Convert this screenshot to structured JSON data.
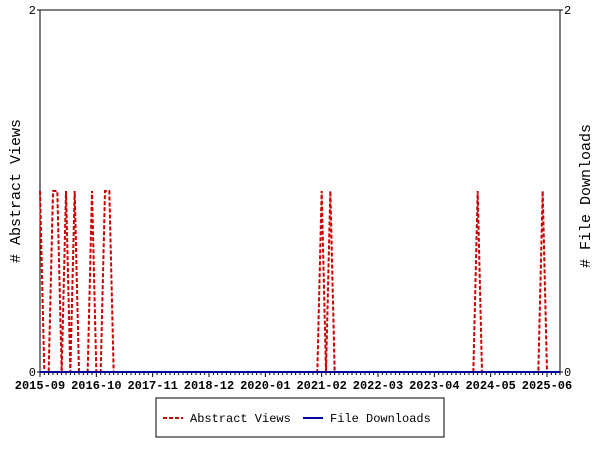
{
  "chart_data": {
    "type": "line",
    "y_label": "# Abstract Views",
    "y2_label": "# File Downloads",
    "categories": [
      "2015-09",
      null,
      null,
      null,
      null,
      null,
      null,
      null,
      null,
      null,
      null,
      null,
      null,
      "2016-10",
      null,
      null,
      null,
      null,
      null,
      null,
      null,
      null,
      null,
      null,
      null,
      null,
      "2017-11",
      null,
      null,
      null,
      null,
      null,
      null,
      null,
      null,
      null,
      null,
      null,
      null,
      "2018-12",
      null,
      null,
      null,
      null,
      null,
      null,
      null,
      null,
      null,
      null,
      null,
      null,
      "2020-01",
      null,
      null,
      null,
      null,
      null,
      null,
      null,
      null,
      null,
      null,
      null,
      null,
      "2021-02",
      null,
      null,
      null,
      null,
      null,
      null,
      null,
      null,
      null,
      null,
      null,
      null,
      "2022-03",
      null,
      null,
      null,
      null,
      null,
      null,
      null,
      null,
      null,
      null,
      null,
      null,
      "2023-04",
      null,
      null,
      null,
      null,
      null,
      null,
      null,
      null,
      null,
      null,
      null,
      null,
      "2024-05",
      null,
      null,
      null,
      null,
      null,
      null,
      null,
      null,
      null,
      null,
      null,
      null,
      "2025-06",
      null,
      null,
      null
    ],
    "series": [
      {
        "name": "Abstract Views",
        "color": "#cc0000",
        "dash": true,
        "values": [
          1,
          0,
          0,
          1,
          1,
          0,
          1,
          0,
          1,
          0,
          0,
          0,
          1,
          0,
          0,
          1,
          1,
          0,
          0,
          0,
          0,
          0,
          0,
          0,
          0,
          0,
          0,
          0,
          0,
          0,
          0,
          0,
          0,
          0,
          0,
          0,
          0,
          0,
          0,
          0,
          0,
          0,
          0,
          0,
          0,
          0,
          0,
          0,
          0,
          0,
          0,
          0,
          0,
          0,
          0,
          0,
          0,
          0,
          0,
          0,
          0,
          0,
          0,
          0,
          0,
          1,
          0,
          1,
          0,
          0,
          0,
          0,
          0,
          0,
          0,
          0,
          0,
          0,
          0,
          0,
          0,
          0,
          0,
          0,
          0,
          0,
          0,
          0,
          0,
          0,
          0,
          0,
          0,
          0,
          0,
          0,
          0,
          0,
          0,
          0,
          0,
          1,
          0,
          0,
          0,
          0,
          0,
          0,
          0,
          0,
          0,
          0,
          0,
          0,
          0,
          0,
          1,
          0,
          0,
          0,
          0
        ]
      },
      {
        "name": "File Downloads",
        "color": "#000099",
        "dash": false,
        "axis": "y2",
        "values": [
          0,
          0,
          0,
          0,
          0,
          0,
          0,
          0,
          0,
          0,
          0,
          0,
          0,
          0,
          0,
          0,
          0,
          0,
          0,
          0,
          0,
          0,
          0,
          0,
          0,
          0,
          0,
          0,
          0,
          0,
          0,
          0,
          0,
          0,
          0,
          0,
          0,
          0,
          0,
          0,
          0,
          0,
          0,
          0,
          0,
          0,
          0,
          0,
          0,
          0,
          0,
          0,
          0,
          0,
          0,
          0,
          0,
          0,
          0,
          0,
          0,
          0,
          0,
          0,
          0,
          0,
          0,
          0,
          0,
          0,
          0,
          0,
          0,
          0,
          0,
          0,
          0,
          0,
          0,
          0,
          0,
          0,
          0,
          0,
          0,
          0,
          0,
          0,
          0,
          0,
          0,
          0,
          0,
          0,
          0,
          0,
          0,
          0,
          0,
          0,
          0,
          0,
          0,
          0,
          0,
          0,
          0,
          0,
          0,
          0,
          0,
          0,
          0,
          0,
          0,
          0,
          0,
          0,
          0,
          0,
          0
        ]
      }
    ],
    "ylim": [
      0,
      2
    ],
    "yticks": [
      0,
      2
    ],
    "y2lim": [
      0,
      2
    ],
    "y2ticks": [
      0,
      2
    ]
  }
}
